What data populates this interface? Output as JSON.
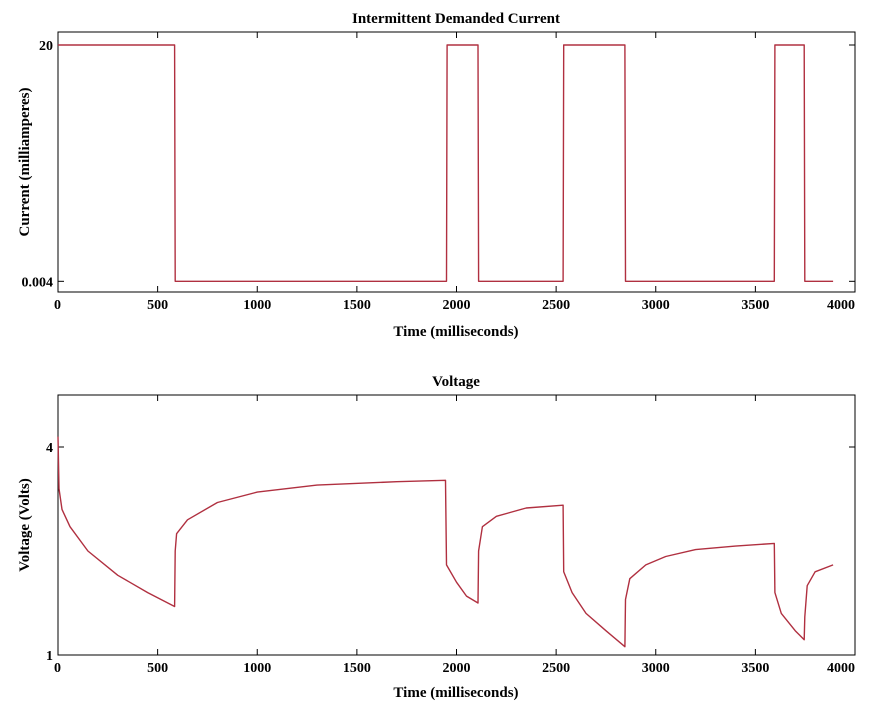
{
  "chart_data": [
    {
      "type": "line",
      "title": "Intermittent Demanded Current",
      "xlabel": "Time (milliseconds)",
      "ylabel": "Current (milliamperes)",
      "xlim": [
        0,
        4000
      ],
      "ylim": [
        -0.9,
        21.1
      ],
      "xticks": [
        "0",
        "500",
        "1000",
        "1500",
        "2000",
        "2500",
        "3000",
        "3500",
        "4000"
      ],
      "yticks": [
        "0.004",
        "20"
      ],
      "grid": false,
      "color": "#b03040",
      "series": [
        {
          "points": [
            [
              0,
              20
            ],
            [
              585,
              20
            ],
            [
              588,
              0.004
            ],
            [
              1950,
              0.004
            ],
            [
              1953,
              20
            ],
            [
              2108,
              20
            ],
            [
              2111,
              0.004
            ],
            [
              2535,
              0.004
            ],
            [
              2538,
              20
            ],
            [
              2845,
              20
            ],
            [
              2848,
              0.004
            ],
            [
              3595,
              0.004
            ],
            [
              3598,
              20
            ],
            [
              3745,
              20
            ],
            [
              3748,
              0.004
            ],
            [
              3890,
              0.004
            ]
          ]
        }
      ]
    },
    {
      "type": "line",
      "title": "Voltage",
      "xlabel": "Time (milliseconds)",
      "ylabel": "Voltage (Volts)",
      "xlim": [
        0,
        4000
      ],
      "ylim": [
        1,
        4.75
      ],
      "xticks": [
        "0",
        "500",
        "1000",
        "1500",
        "2000",
        "2500",
        "3000",
        "3500",
        "4000"
      ],
      "yticks": [
        "1",
        "4"
      ],
      "grid": false,
      "color": "#b03040",
      "series": [
        {
          "points": [
            [
              0,
              4.15
            ],
            [
              5,
              3.4
            ],
            [
              20,
              3.1
            ],
            [
              60,
              2.85
            ],
            [
              150,
              2.5
            ],
            [
              300,
              2.15
            ],
            [
              450,
              1.9
            ],
            [
              585,
              1.7
            ],
            [
              588,
              2.5
            ],
            [
              595,
              2.75
            ],
            [
              650,
              2.95
            ],
            [
              800,
              3.2
            ],
            [
              1000,
              3.35
            ],
            [
              1300,
              3.45
            ],
            [
              1700,
              3.5
            ],
            [
              1945,
              3.52
            ],
            [
              1950,
              2.3
            ],
            [
              2000,
              2.05
            ],
            [
              2050,
              1.85
            ],
            [
              2108,
              1.75
            ],
            [
              2111,
              2.5
            ],
            [
              2130,
              2.85
            ],
            [
              2200,
              3.0
            ],
            [
              2350,
              3.12
            ],
            [
              2535,
              3.16
            ],
            [
              2538,
              2.2
            ],
            [
              2580,
              1.9
            ],
            [
              2650,
              1.6
            ],
            [
              2750,
              1.35
            ],
            [
              2845,
              1.12
            ],
            [
              2848,
              1.8
            ],
            [
              2870,
              2.1
            ],
            [
              2950,
              2.3
            ],
            [
              3050,
              2.42
            ],
            [
              3200,
              2.52
            ],
            [
              3400,
              2.57
            ],
            [
              3595,
              2.61
            ],
            [
              3598,
              1.9
            ],
            [
              3630,
              1.6
            ],
            [
              3700,
              1.35
            ],
            [
              3745,
              1.22
            ],
            [
              3748,
              1.55
            ],
            [
              3760,
              2.0
            ],
            [
              3800,
              2.2
            ],
            [
              3890,
              2.3
            ]
          ]
        }
      ]
    }
  ]
}
